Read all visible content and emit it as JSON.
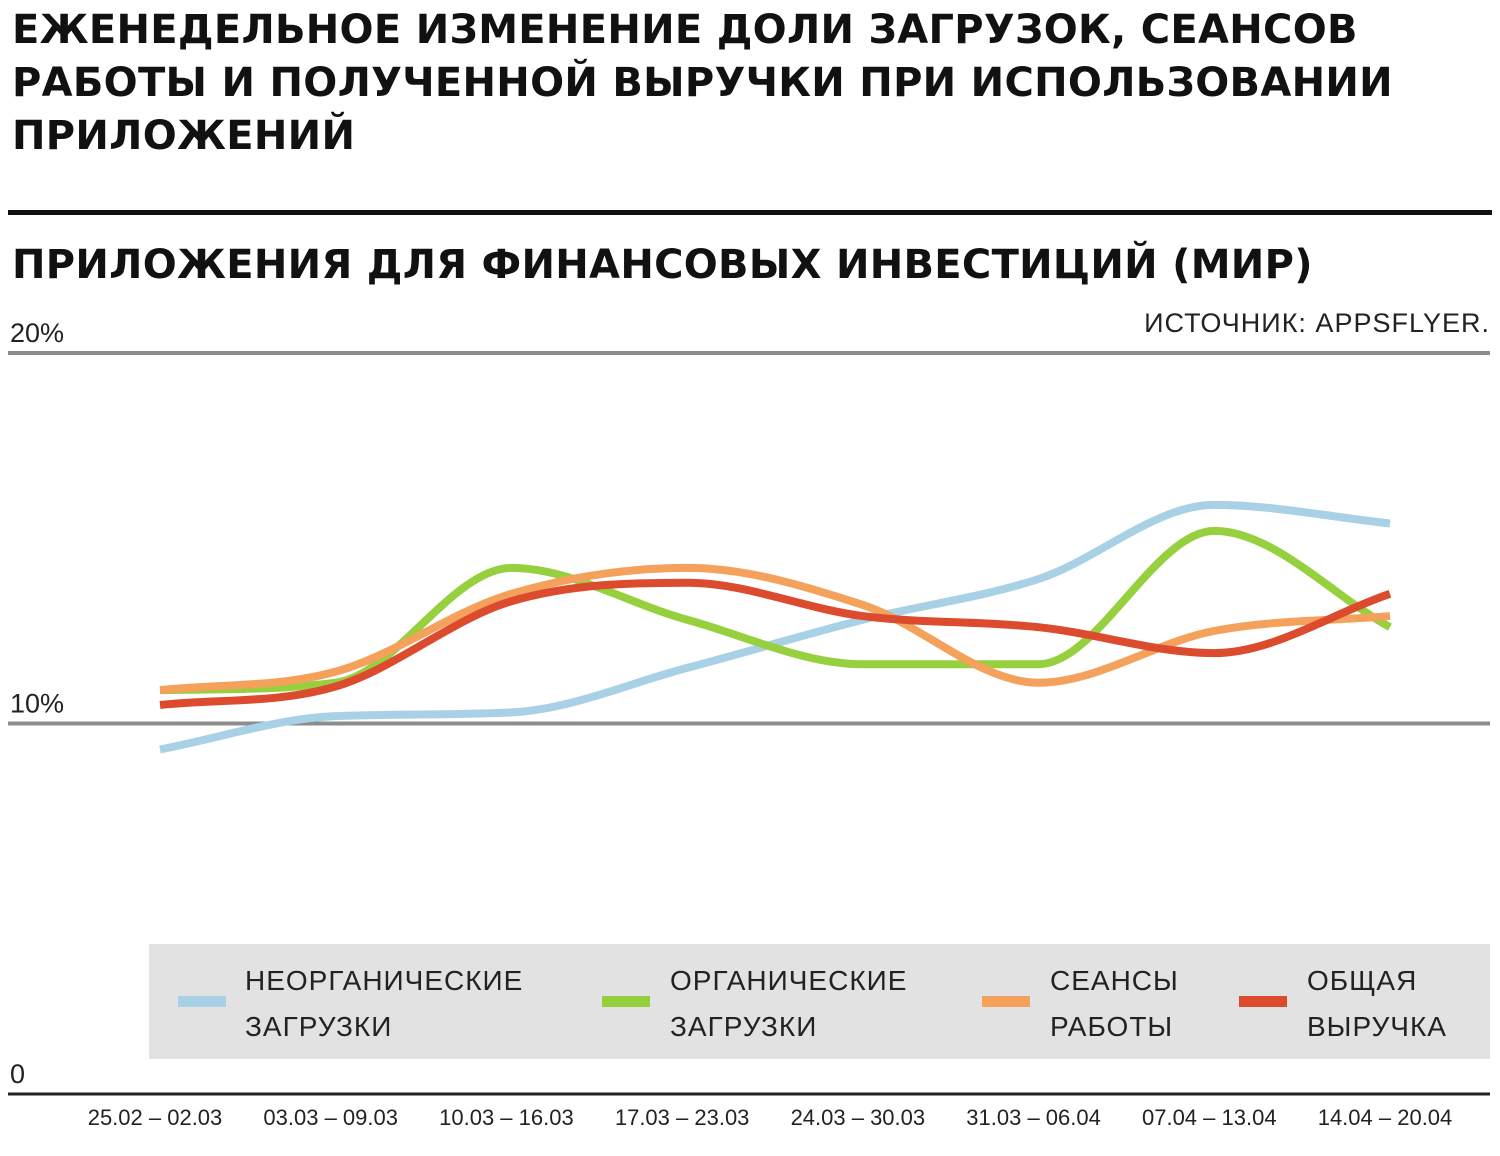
{
  "title": "ЕЖЕНЕДЕЛЬНОЕ ИЗМЕНЕНИЕ ДОЛИ ЗАГРУЗОК, СЕАНСОВ РАБОТЫ И ПОЛУЧЕННОЙ ВЫРУЧКИ ПРИ ИСПОЛЬЗОВАНИИ ПРИЛОЖЕНИЙ",
  "subtitle": "ПРИЛОЖЕНИЯ ДЛЯ ФИНАНСОВЫХ ИНВЕСТИЦИЙ (МИР)",
  "source": "ИСТОЧНИК: APPSFLYER.",
  "chart_data": {
    "type": "line",
    "title": "ПРИЛОЖЕНИЯ ДЛЯ ФИНАНСОВЫХ ИНВЕСТИЦИЙ (МИР)",
    "xlabel": "",
    "ylabel": "",
    "ylim": [
      0,
      20
    ],
    "yticks": [
      {
        "value": 0,
        "label": "0"
      },
      {
        "value": 10,
        "label": "10%"
      },
      {
        "value": 20,
        "label": "20%"
      }
    ],
    "categories": [
      "25.02 – 02.03",
      "03.03 – 09.03",
      "10.03 – 16.03",
      "17.03 – 23.03",
      "24.03 – 30.03",
      "31.03 – 06.04",
      "07.04 – 13.04",
      "14.04 – 20.04"
    ],
    "series": [
      {
        "name": "НЕОРГАНИЧЕСКИЕ ЗАГРУЗКИ",
        "color": "#a8d1e5",
        "values": [
          9.3,
          10.2,
          10.3,
          11.5,
          12.8,
          13.9,
          15.9,
          15.4
        ]
      },
      {
        "name": "ОРГАНИЧЕСКИЕ ЗАГРУЗКИ",
        "color": "#97d03f",
        "values": [
          10.9,
          11.1,
          14.2,
          12.8,
          11.6,
          11.6,
          15.2,
          12.6
        ]
      },
      {
        "name": "СЕАНСЫ РАБОТЫ",
        "color": "#f4a15c",
        "values": [
          10.9,
          11.4,
          13.5,
          14.2,
          13.2,
          11.1,
          12.5,
          12.9
        ]
      },
      {
        "name": "ОБЩАЯ ВЫРУЧКА",
        "color": "#dd4b2e",
        "values": [
          10.5,
          11.0,
          13.3,
          13.8,
          12.9,
          12.6,
          11.9,
          13.5
        ]
      }
    ],
    "legend": {
      "position": "bottom"
    }
  },
  "legend_items": [
    {
      "label": "НЕОРГАНИЧЕСКИЕ\nЗАГРУЗКИ"
    },
    {
      "label": "ОРГАНИЧЕСКИЕ\nЗАГРУЗКИ"
    },
    {
      "label": "СЕАНСЫ\nРАБОТЫ"
    },
    {
      "label": "ОБЩАЯ\nВЫРУЧКА"
    }
  ]
}
